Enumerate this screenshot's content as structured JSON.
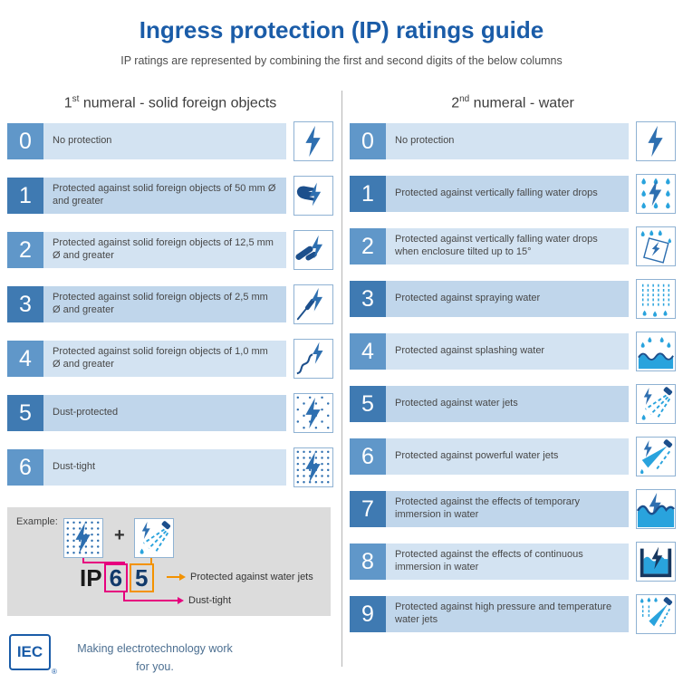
{
  "title": "Ingress protection (IP) ratings guide",
  "subtitle": "IP ratings are represented by combining the first and second digits of the below columns",
  "columns": {
    "left": {
      "heading_prefix": "1",
      "heading_sup": "st",
      "heading_rest": " numeral - solid foreign objects",
      "rows": [
        {
          "digit": "0",
          "text": "No protection",
          "icon": "bolt-icon"
        },
        {
          "digit": "1",
          "text": "Protected against solid foreign objects of 50 mm Ø and greater",
          "icon": "hand-bolt-icon"
        },
        {
          "digit": "2",
          "text": "Protected against solid foreign objects of 12,5 mm Ø and greater",
          "icon": "finger-bolt-icon"
        },
        {
          "digit": "3",
          "text": "Protected against solid foreign objects of 2,5 mm Ø and greater",
          "icon": "tool-bolt-icon"
        },
        {
          "digit": "4",
          "text": "Protected against solid foreign objects of 1,0 mm Ø and greater",
          "icon": "wire-bolt-icon"
        },
        {
          "digit": "5",
          "text": "Dust-protected",
          "icon": "dust-protected-icon"
        },
        {
          "digit": "6",
          "text": "Dust-tight",
          "icon": "dust-tight-icon"
        }
      ]
    },
    "right": {
      "heading_prefix": "2",
      "heading_sup": "nd",
      "heading_rest": " numeral - water",
      "rows": [
        {
          "digit": "0",
          "text": "No protection",
          "icon": "bolt-icon"
        },
        {
          "digit": "1",
          "text": "Protected against vertically falling water drops",
          "icon": "falling-drops-icon"
        },
        {
          "digit": "2",
          "text": "Protected against vertically falling water drops when enclosure tilted up to 15°",
          "icon": "tilted-drops-icon"
        },
        {
          "digit": "3",
          "text": "Protected against spraying water",
          "icon": "spraying-water-icon"
        },
        {
          "digit": "4",
          "text": "Protected against splashing water",
          "icon": "splashing-water-icon"
        },
        {
          "digit": "5",
          "text": "Protected against water jets",
          "icon": "water-jets-icon"
        },
        {
          "digit": "6",
          "text": "Protected against powerful water jets",
          "icon": "powerful-jets-icon"
        },
        {
          "digit": "7",
          "text": "Protected against the effects of temporary immersion in water",
          "icon": "temporary-immersion-icon"
        },
        {
          "digit": "8",
          "text": "Protected against the effects of continuous immersion in water",
          "icon": "continuous-immersion-icon"
        },
        {
          "digit": "9",
          "text": "Protected against high pressure and temperature water jets",
          "icon": "high-pressure-jets-icon"
        }
      ]
    }
  },
  "example": {
    "label": "Example:",
    "plus": "+",
    "first_icon": "dust-tight-icon",
    "second_icon": "water-jets-icon",
    "code_prefix": "IP",
    "first_digit": "6",
    "second_digit": "5",
    "second_digit_meaning": "Protected against water jets",
    "first_digit_meaning": "Dust-tight"
  },
  "footer": {
    "logo": "IEC",
    "registered": "®",
    "tagline_line1": "Making  electrotechnology work",
    "tagline_line2": "for you."
  },
  "colors": {
    "title_blue": "#1a5ca8",
    "tile_blue_light": "#6097c9",
    "tile_blue_dark": "#3f7ab2",
    "strip_light": "#d3e3f2",
    "strip_dark": "#c0d6eb",
    "bolt_blue": "#2e6fb0",
    "navy": "#1c4f8c",
    "water_blue": "#29a3dd",
    "magenta": "#e6007e",
    "orange": "#f39200",
    "example_bg": "#dcdcdc"
  }
}
